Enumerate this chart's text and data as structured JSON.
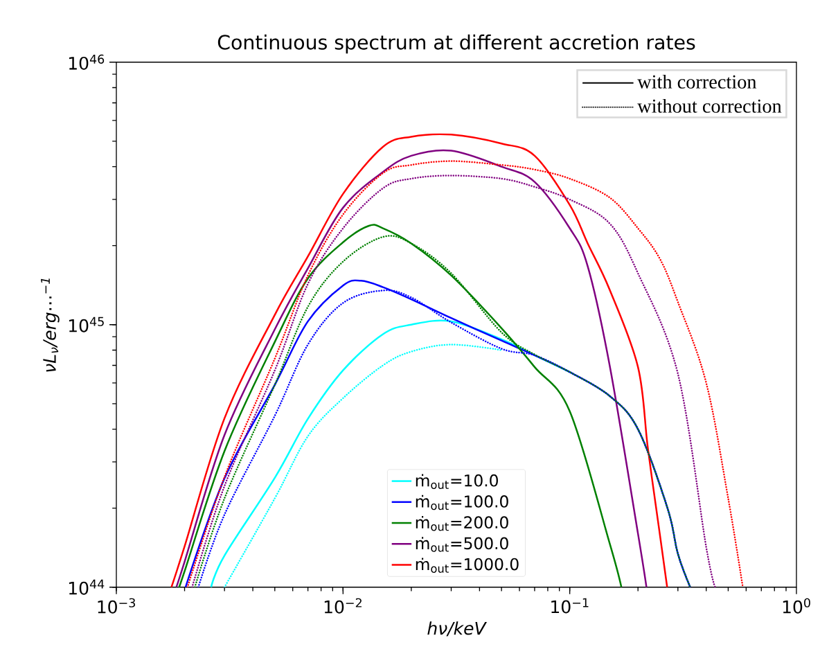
{
  "chart_data": {
    "type": "line",
    "title": "Continuous spectrum at different accretion rates",
    "xlabel": "hν/keV",
    "ylabel": "νL$_{ν}$/erg⋯$^{−1}$",
    "log": "xy",
    "grid": false,
    "legend": "bottom",
    "xlim": [
      0.001,
      1
    ],
    "ylim": [
      1e+44,
      1e+46
    ],
    "xticks": [
      {
        "value": 0.001,
        "label": "10$^{−3}$"
      },
      {
        "value": 0.01,
        "label": "10$^{−2}$"
      },
      {
        "value": 0.1,
        "label": "10$^{−1}$"
      },
      {
        "value": 1,
        "label": "10$^{0}$"
      }
    ],
    "yticks": [
      {
        "value": 1e+44,
        "label": "10$^{44}$"
      },
      {
        "value": 1e+45,
        "label": "10$^{45}$"
      },
      {
        "value": 1e+46,
        "label": "10$^{46}$"
      }
    ],
    "annotations": [
      "with correction",
      "without correction"
    ],
    "series": [
      {
        "name": "ṁ$_{out}$=10.0",
        "color": "#00ffff",
        "line_style": "solid",
        "x": [
          0.00262,
          0.003,
          0.005,
          0.007,
          0.01,
          0.015,
          0.02,
          0.03,
          0.05,
          0.07,
          0.1
        ],
        "values": [
          1e+44,
          1.32e+44,
          2.61e+44,
          4.38e+44,
          6.7e+44,
          9.2e+44,
          1e+45,
          1.03e+45,
          8.8e+44,
          7.65e+44,
          6.6e+44
        ]
      },
      {
        "name": "ṁ$_{out}$=100.0",
        "color": "#0000ff",
        "line_style": "solid",
        "x": [
          0.00202,
          0.003,
          0.005,
          0.007,
          0.01,
          0.012,
          0.015,
          0.02,
          0.03,
          0.05,
          0.07,
          0.1,
          0.15,
          0.2,
          0.27,
          0.3,
          0.34
        ],
        "values": [
          1e+44,
          2.6e+44,
          5.9e+44,
          1.03e+45,
          1.41e+45,
          1.47e+45,
          1.39e+45,
          1.25e+45,
          1.06e+45,
          8.7e+44,
          7.65e+44,
          6.6e+44,
          5.35e+44,
          4e+44,
          2e+44,
          1.34e+44,
          1e+44
        ]
      },
      {
        "name": "ṁ$_{out}$=200.0",
        "color": "#008000",
        "line_style": "solid",
        "x": [
          0.00189,
          0.002,
          0.003,
          0.005,
          0.007,
          0.01,
          0.013,
          0.015,
          0.02,
          0.03,
          0.05,
          0.07,
          0.1,
          0.15,
          0.169
        ],
        "values": [
          1e+44,
          1.15e+44,
          3.3e+44,
          8.6e+44,
          1.5e+45,
          2.06e+45,
          2.38e+45,
          2.33e+45,
          2.04e+45,
          1.54e+45,
          9.7e+44,
          6.9e+44,
          4.68e+44,
          1.47e+44,
          1e+44
        ]
      },
      {
        "name": "ṁ$_{out}$=500.0",
        "color": "#800080",
        "line_style": "solid",
        "x": [
          0.00184,
          0.002,
          0.003,
          0.005,
          0.007,
          0.01,
          0.015,
          0.02,
          0.03,
          0.05,
          0.07,
          0.1,
          0.12,
          0.15,
          0.2,
          0.218
        ],
        "values": [
          1e+44,
          1.25e+44,
          3.8e+44,
          9.6e+44,
          1.64e+45,
          2.79e+45,
          3.82e+45,
          4.4e+45,
          4.6e+45,
          4e+45,
          3.5e+45,
          2.33e+45,
          1.67e+45,
          7e+44,
          1.6e+44,
          1e+44
        ]
      },
      {
        "name": "ṁ$_{out}$=1000.0",
        "color": "#ff0000",
        "line_style": "solid",
        "x": [
          0.00175,
          0.002,
          0.003,
          0.005,
          0.007,
          0.01,
          0.015,
          0.02,
          0.03,
          0.05,
          0.07,
          0.1,
          0.12,
          0.15,
          0.2,
          0.221,
          0.248,
          0.269
        ],
        "values": [
          1e+44,
          1.43e+44,
          4.4e+44,
          1.09e+45,
          1.82e+45,
          3.15e+45,
          4.76e+45,
          5.2e+45,
          5.3e+45,
          4.9e+45,
          4.4e+45,
          2.86e+45,
          2.04e+45,
          1.36e+45,
          6.9e+44,
          3.4e+44,
          1.66e+44,
          1e+44
        ]
      },
      {
        "color": "#00ffff",
        "line_style": "dotted",
        "x": [
          0.003,
          0.005,
          0.007,
          0.01,
          0.015,
          0.02,
          0.03,
          0.05
        ],
        "values": [
          1e+44,
          2.18e+44,
          3.76e+44,
          5.25e+44,
          7e+44,
          7.9e+44,
          8.4e+44,
          8e+44
        ]
      },
      {
        "color": "#0000ff",
        "line_style": "dotted",
        "x": [
          0.0023,
          0.003,
          0.005,
          0.007,
          0.01,
          0.015,
          0.02,
          0.03,
          0.05,
          0.07,
          0.1,
          0.15,
          0.2,
          0.27,
          0.3,
          0.34
        ],
        "values": [
          1e+44,
          1.89e+44,
          4.5e+44,
          8.4e+44,
          1.21e+45,
          1.35e+45,
          1.27e+45,
          1.02e+45,
          8.1e+44,
          7.65e+44,
          6.6e+44,
          5.35e+44,
          4e+44,
          2e+44,
          1.34e+44,
          1e+44
        ]
      },
      {
        "color": "#008000",
        "line_style": "dotted",
        "x": [
          0.00222,
          0.003,
          0.005,
          0.007,
          0.01,
          0.015,
          0.02,
          0.03,
          0.05,
          0.07,
          0.1,
          0.15,
          0.2,
          0.27,
          0.3,
          0.34
        ],
        "values": [
          1e+44,
          2.18e+44,
          5.9e+44,
          1.17e+45,
          1.74e+45,
          2.16e+45,
          2.04e+45,
          1.57e+45,
          9.35e+44,
          7.7e+44,
          6.6e+44,
          5.35e+44,
          4e+44,
          2e+44,
          1.34e+44,
          1e+44
        ]
      },
      {
        "color": "#800080",
        "line_style": "dotted",
        "x": [
          0.00216,
          0.003,
          0.005,
          0.007,
          0.01,
          0.015,
          0.02,
          0.03,
          0.05,
          0.07,
          0.1,
          0.15,
          0.2,
          0.3,
          0.4,
          0.438
        ],
        "values": [
          1e+44,
          2.43e+44,
          6.7e+44,
          1.43e+45,
          2.33e+45,
          3.31e+45,
          3.6e+45,
          3.7e+45,
          3.6e+45,
          3.35e+45,
          3e+45,
          2.43e+45,
          1.57e+45,
          6.5e+44,
          1.42e+44,
          1e+44
        ]
      },
      {
        "color": "#ff0000",
        "line_style": "dotted",
        "x": [
          0.00206,
          0.003,
          0.005,
          0.007,
          0.01,
          0.015,
          0.02,
          0.03,
          0.05,
          0.07,
          0.1,
          0.15,
          0.2,
          0.25,
          0.3,
          0.4,
          0.5,
          0.58
        ],
        "values": [
          1e+44,
          2.63e+44,
          7.43e+44,
          1.54e+45,
          2.63e+45,
          3.78e+45,
          4.06e+45,
          4.2e+45,
          4.06e+45,
          3.9e+45,
          3.6e+45,
          3.05e+45,
          2.33e+45,
          1.78e+45,
          1.22e+45,
          6e+44,
          2.18e+44,
          1e+44
        ]
      }
    ]
  }
}
